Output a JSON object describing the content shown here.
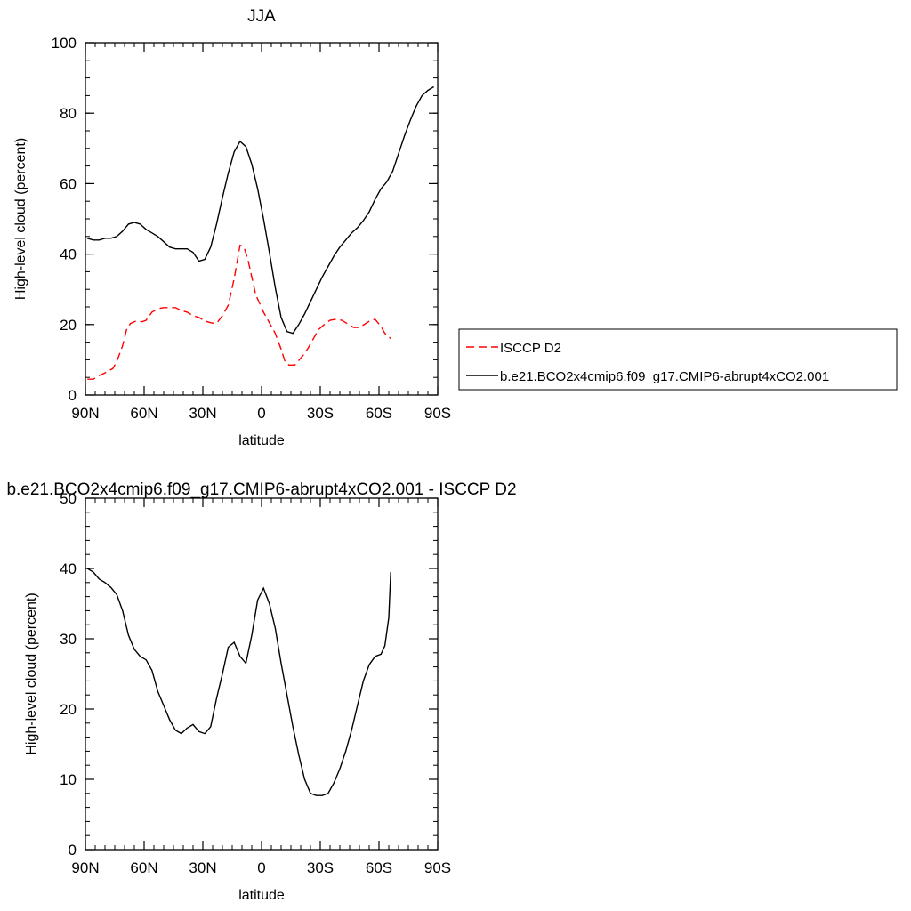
{
  "chart_data": [
    {
      "type": "line",
      "title": "JJA",
      "xlabel": "latitude",
      "ylabel": "High-level cloud (percent)",
      "xlim": [
        90,
        -90
      ],
      "ylim": [
        0,
        100
      ],
      "x_tick_values": [
        90,
        60,
        30,
        0,
        -30,
        -60,
        -90
      ],
      "x_ticks": [
        "90N",
        "60N",
        "30N",
        "0",
        "30S",
        "60S",
        "90S"
      ],
      "y_ticks": [
        "0",
        "20",
        "40",
        "60",
        "80",
        "100"
      ],
      "y_tick_values": [
        0,
        20,
        40,
        60,
        80,
        100
      ],
      "grid": false,
      "legend_position": "right",
      "series": [
        {
          "name": "ISCCP D2",
          "color": "#ff0000",
          "dash": "dashed",
          "x": [
            89,
            86,
            83,
            80,
            76,
            74,
            71,
            69,
            67,
            64,
            61,
            59,
            56,
            53,
            50,
            47,
            44,
            41,
            38,
            35,
            32,
            29,
            26,
            23,
            20,
            17,
            14,
            11,
            9,
            7,
            5,
            3,
            1,
            -1,
            -4,
            -7,
            -10,
            -12,
            -14,
            -17,
            -19,
            -22,
            -24,
            -27,
            -29,
            -32,
            -35,
            -38,
            -41,
            -44,
            -47,
            -50,
            -53,
            -56,
            -58,
            -61,
            -63,
            -66
          ],
          "y": [
            4.5,
            4.5,
            5.5,
            6.3,
            7.5,
            9.5,
            14,
            18.5,
            20.3,
            21,
            20.8,
            21.2,
            23.5,
            24.5,
            24.8,
            24.8,
            24.8,
            24,
            23.5,
            22.5,
            22,
            21,
            20.5,
            20.3,
            22.5,
            25.5,
            33,
            42.5,
            42,
            38.5,
            33.5,
            28.5,
            26,
            23.5,
            20.5,
            17.5,
            13,
            9.5,
            8.5,
            8.5,
            9.8,
            11.8,
            13.5,
            16.5,
            18.5,
            20,
            21.2,
            21.5,
            21.2,
            20.2,
            19.2,
            19.2,
            20.2,
            21.3,
            21.5,
            19.5,
            17.5,
            16
          ]
        },
        {
          "name": "b.e21.BCO2x4cmip6.f09_g17.CMIP6-abrupt4xCO2.001",
          "color": "#000000",
          "dash": "solid",
          "x": [
            89,
            86,
            83,
            80,
            77,
            74,
            71,
            68,
            65,
            62,
            59,
            56,
            53,
            50,
            47,
            44,
            41,
            38,
            35,
            32,
            29,
            26,
            23,
            20,
            17,
            14,
            11,
            8,
            5,
            2,
            -1,
            -4,
            -7,
            -10,
            -13,
            -16,
            -19,
            -22,
            -25,
            -28,
            -31,
            -34,
            -37,
            -40,
            -43,
            -46,
            -49,
            -52,
            -55,
            -58,
            -61,
            -64,
            -67,
            -70,
            -73,
            -76,
            -79,
            -82,
            -85,
            -88
          ],
          "y": [
            44.5,
            44,
            44,
            44.5,
            44.5,
            45,
            46.5,
            48.5,
            49,
            48.5,
            47,
            46,
            45,
            43.5,
            42,
            41.5,
            41.5,
            41.5,
            40.5,
            38,
            38.5,
            42,
            48.5,
            56,
            63,
            69,
            72,
            70.5,
            65.5,
            58.5,
            50,
            40.5,
            30.5,
            22,
            18,
            17.5,
            20,
            23,
            26.5,
            30,
            33.5,
            36.5,
            39.5,
            42,
            44,
            46,
            47.5,
            49.5,
            52,
            55.5,
            58.5,
            60.5,
            63.5,
            68.5,
            73.5,
            78,
            82,
            85,
            86.5,
            87.5
          ]
        }
      ]
    },
    {
      "type": "line",
      "title": "b.e21.BCO2x4cmip6.f09_g17.CMIP6-abrupt4xCO2.001 - ISCCP D2",
      "xlabel": "latitude",
      "ylabel": "High-level cloud (percent)",
      "xlim": [
        90,
        -90
      ],
      "ylim": [
        0,
        50
      ],
      "x_tick_values": [
        90,
        60,
        30,
        0,
        -30,
        -60,
        -90
      ],
      "x_ticks": [
        "90N",
        "60N",
        "30N",
        "0",
        "30S",
        "60S",
        "90S"
      ],
      "y_ticks": [
        "0",
        "10",
        "20",
        "30",
        "40",
        "50"
      ],
      "y_tick_values": [
        0,
        10,
        20,
        30,
        40,
        50
      ],
      "grid": false,
      "series": [
        {
          "color": "#000000",
          "dash": "solid",
          "x": [
            89,
            86,
            83,
            80,
            77,
            74,
            71,
            68,
            65,
            62,
            59,
            56,
            53,
            50,
            47,
            44,
            41,
            38,
            35,
            32,
            29,
            26,
            23,
            20,
            17,
            14,
            11,
            8,
            5,
            2,
            -1,
            -4,
            -7,
            -10,
            -13,
            -16,
            -19,
            -22,
            -25,
            -28,
            -31,
            -34,
            -37,
            -40,
            -43,
            -46,
            -49,
            -52,
            -55,
            -58,
            -61,
            -63,
            -65,
            -66
          ],
          "y": [
            40,
            39.5,
            38.5,
            38,
            37.3,
            36.3,
            34,
            30.5,
            28.5,
            27.5,
            27,
            25.5,
            22.5,
            20.5,
            18.5,
            17,
            16.5,
            17.3,
            17.8,
            16.8,
            16.5,
            17.5,
            21.5,
            25,
            28.8,
            29.5,
            27.5,
            26.5,
            30.5,
            35.5,
            37.2,
            35,
            31.5,
            26.5,
            22,
            17.5,
            13.5,
            10,
            8,
            7.7,
            7.7,
            8,
            9.5,
            11.5,
            14,
            17,
            20.5,
            24,
            26.3,
            27.5,
            27.8,
            29,
            33,
            39.5
          ]
        }
      ]
    }
  ]
}
